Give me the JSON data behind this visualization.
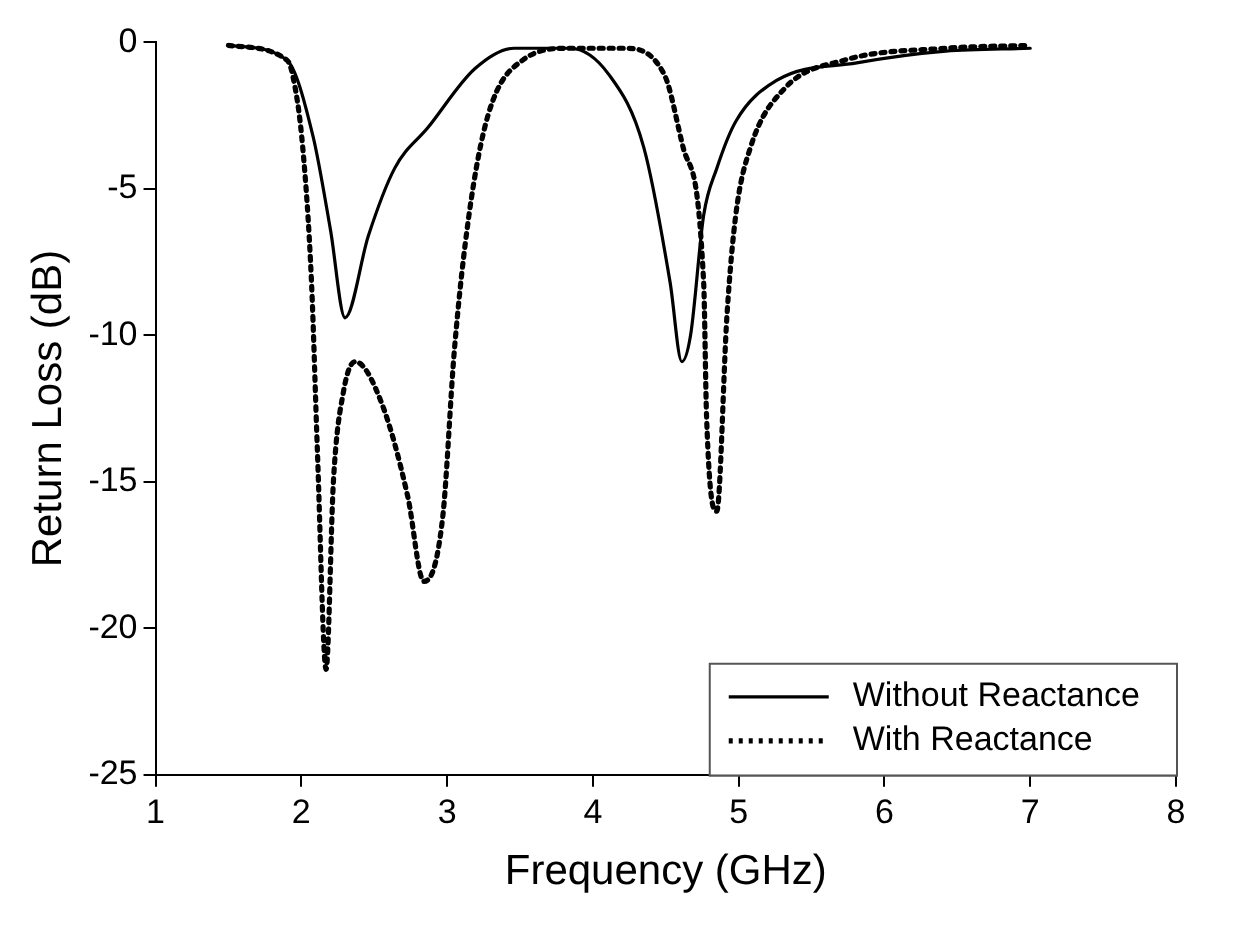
{
  "chart_data": {
    "type": "line",
    "xlabel": "Frequency (GHz)",
    "ylabel": "Return Loss (dB)",
    "xlim": [
      1,
      8
    ],
    "xticks": [
      1,
      2,
      3,
      4,
      5,
      6,
      7,
      8
    ],
    "ylim": [
      -25,
      0
    ],
    "yticks": [
      -25,
      -20,
      -15,
      -10,
      -5,
      0
    ],
    "grid": false,
    "legend": "bottom right",
    "marker": "none",
    "series": [
      {
        "name": "Without Reactance",
        "color": "#000000",
        "line_style": "solid",
        "x": [
          1.5,
          1.9,
          2.08,
          2.2,
          2.3,
          2.46,
          2.64,
          2.87,
          3.19,
          3.46,
          3.84,
          4.11,
          4.35,
          4.53,
          4.61,
          4.67,
          4.76,
          4.85,
          4.98,
          5.26,
          5.81,
          6.42,
          7.0
        ],
        "values": [
          -0.1,
          -0.6,
          -3.2,
          -6.4,
          -9.4,
          -6.6,
          -4.3,
          -2.9,
          -0.9,
          -0.2,
          -0.2,
          -1.1,
          -3.6,
          -8.2,
          -10.9,
          -10,
          -5.9,
          -4.3,
          -2.7,
          -1.3,
          -0.7,
          -0.3,
          -0.2
        ]
      },
      {
        "name": "With Reactance",
        "color": "#000000",
        "line_style": "dotted",
        "x": [
          1.5,
          1.9,
          1.94,
          2.01,
          2.07,
          2.11,
          2.17,
          2.22,
          2.29,
          2.37,
          2.55,
          2.73,
          2.84,
          2.97,
          3.05,
          3.15,
          3.28,
          3.52,
          3.84,
          4.21,
          4.49,
          4.62,
          4.76,
          4.78,
          4.85,
          4.92,
          4.98,
          5.08,
          5.31,
          5.73,
          6.42,
          7.0
        ],
        "values": [
          -0.1,
          -0.6,
          -1.1,
          -3.6,
          -8.2,
          -13.9,
          -21.4,
          -15,
          -11.9,
          -10.9,
          -12.3,
          -15.5,
          -18.4,
          -16.2,
          -10.5,
          -5.9,
          -2.5,
          -0.6,
          -0.2,
          -0.2,
          -1.1,
          -3.6,
          -8.2,
          -12.8,
          -16,
          -9.3,
          -5.9,
          -3.6,
          -1.6,
          -0.6,
          -0.2,
          -0.1
        ]
      }
    ]
  }
}
